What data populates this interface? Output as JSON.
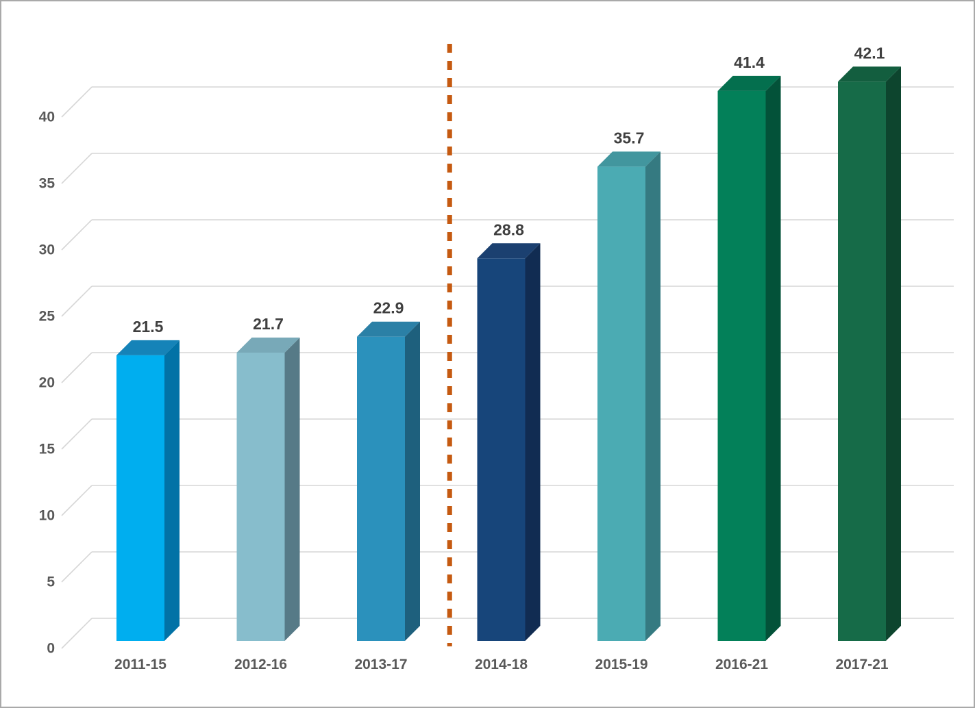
{
  "chart_data": {
    "type": "bar",
    "style": "3d-column",
    "title": "",
    "xlabel": "",
    "ylabel": "",
    "categories": [
      "2011-15",
      "2012-16",
      "2013-17",
      "2014-18",
      "2015-19",
      "2016-21",
      "2017-21"
    ],
    "values": [
      21.5,
      21.7,
      22.9,
      28.8,
      35.7,
      41.4,
      42.1
    ],
    "data_labels": [
      "21.5",
      "21.7",
      "22.9",
      "28.8",
      "35.7",
      "41.4",
      "42.1"
    ],
    "yticks": [
      0,
      5,
      10,
      15,
      20,
      25,
      30,
      35,
      40
    ],
    "ylim": [
      0,
      44
    ],
    "grid": true,
    "legend": "none",
    "bar_colors": [
      {
        "front": "#00AEEF",
        "top": "#1583B8",
        "side": "#0272A6"
      },
      {
        "front": "#87BDCC",
        "top": "#78A9B8",
        "side": "#567A87"
      },
      {
        "front": "#2B91BC",
        "top": "#2B80A6",
        "side": "#1E607D"
      },
      {
        "front": "#17457A",
        "top": "#1B4070",
        "side": "#112C52"
      },
      {
        "front": "#4BABB3",
        "top": "#42969E",
        "side": "#357A81"
      },
      {
        "front": "#038059",
        "top": "#046F4E",
        "side": "#035239"
      },
      {
        "front": "#166B48",
        "top": "#135E3F",
        "side": "#0D452E"
      }
    ],
    "annotations": [
      {
        "type": "vline",
        "style": "dashed",
        "color": "#C55A11",
        "between_categories": [
          "2013-17",
          "2014-18"
        ]
      }
    ],
    "layout_colors": {
      "gridline": "#D6D6D6",
      "axis_label_text": "#595959",
      "value_label_text": "#3F3F3F",
      "background": "#FFFFFF",
      "frame_border": "#A9A9A9"
    }
  }
}
